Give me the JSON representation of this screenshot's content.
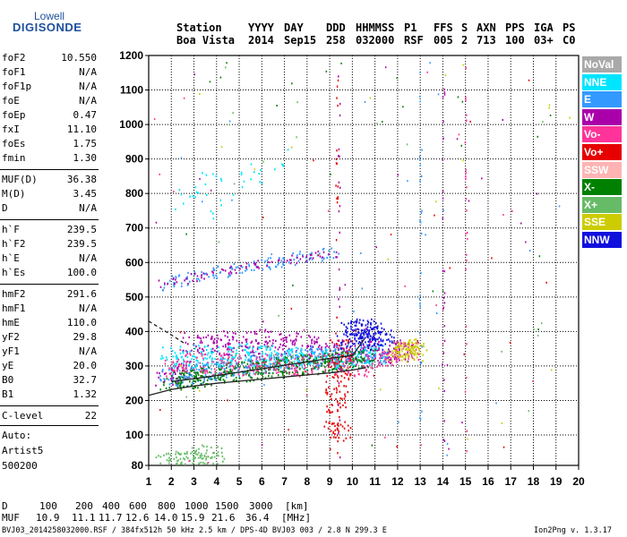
{
  "logo": {
    "line1": "Lowell",
    "line2": "DIGISONDE"
  },
  "header": {
    "row1": [
      "Station",
      "YYYY",
      "DAY",
      "DDD",
      "HHMMSS",
      "P1",
      "FFS",
      "S",
      "AXN",
      "PPS",
      "IGA",
      "PS"
    ],
    "row2": [
      "Boa Vista",
      "2014",
      "Sep15",
      "258",
      "032000",
      "RSF",
      "005",
      "2",
      "713",
      "100",
      "03+",
      "C0"
    ]
  },
  "params": [
    {
      "k": "foF2",
      "v": "10.550"
    },
    {
      "k": "foF1",
      "v": "N/A"
    },
    {
      "k": "foF1p",
      "v": "N/A"
    },
    {
      "k": "foE",
      "v": "N/A"
    },
    {
      "k": "foEp",
      "v": "0.47"
    },
    {
      "k": "fxI",
      "v": "11.10"
    },
    {
      "k": "foEs",
      "v": "1.75"
    },
    {
      "k": "fmin",
      "v": "1.30"
    },
    {
      "k": "MUF(D)",
      "v": "36.38"
    },
    {
      "k": "M(D)",
      "v": "3.45"
    },
    {
      "k": "D",
      "v": "N/A"
    },
    {
      "k": "h`F",
      "v": "239.5"
    },
    {
      "k": "h`F2",
      "v": "239.5"
    },
    {
      "k": "h`E",
      "v": "N/A"
    },
    {
      "k": "h`Es",
      "v": "100.0"
    },
    {
      "k": "hmF2",
      "v": "291.6"
    },
    {
      "k": "hmF1",
      "v": "N/A"
    },
    {
      "k": "hmE",
      "v": "110.0"
    },
    {
      "k": "yF2",
      "v": "29.8"
    },
    {
      "k": "yF1",
      "v": "N/A"
    },
    {
      "k": "yE",
      "v": "20.0"
    },
    {
      "k": "B0",
      "v": "32.7"
    },
    {
      "k": "B1",
      "v": "1.32"
    },
    {
      "k": "C-level",
      "v": "22"
    }
  ],
  "auto": {
    "line1": "Auto:",
    "line2": "Artist5",
    "line3": "500200"
  },
  "bottom": {
    "d_label": "D",
    "d_values": [
      "100",
      "200",
      "400",
      "600",
      "800",
      "1000",
      "1500",
      "3000",
      "[km]"
    ],
    "muf_label": "MUF",
    "muf_values": [
      "10.9",
      "11.1",
      "11.7",
      "12.6",
      "14.0",
      "15.9",
      "21.6",
      "36.4",
      "[MHz]"
    ]
  },
  "footer": {
    "left": "BVJ03_2014258032000.RSF / 384fx512h 50 kHz 2.5 km / DPS-4D BVJ03 003 / 2.8 N 299.3 E",
    "right": "Ion2Png v. 1.3.17"
  },
  "legend": [
    {
      "label": "NoVal",
      "color": "#a9a9a9"
    },
    {
      "label": "NNE",
      "color": "#00e5ff"
    },
    {
      "label": "E",
      "color": "#3399ff"
    },
    {
      "label": "W",
      "color": "#aa00aa"
    },
    {
      "label": "Vo-",
      "color": "#ff3399"
    },
    {
      "label": "Vo+",
      "color": "#e60000"
    },
    {
      "label": "SSW",
      "color": "#ffb3b3"
    },
    {
      "label": "X-",
      "color": "#008000"
    },
    {
      "label": "X+",
      "color": "#66bb66"
    },
    {
      "label": "SSE",
      "color": "#cccc00"
    },
    {
      "label": "NNW",
      "color": "#1010dd"
    }
  ],
  "chart_data": {
    "type": "scatter",
    "x_ticks": [
      1,
      2,
      3,
      4,
      5,
      6,
      7,
      8,
      9,
      10,
      11,
      12,
      13,
      14,
      15,
      16,
      17,
      18,
      19,
      20
    ],
    "y_ticks": [
      80,
      100,
      200,
      300,
      400,
      500,
      600,
      700,
      800,
      900,
      1000,
      1100,
      1200
    ],
    "xlim": [
      1,
      20
    ],
    "ylim": [
      80,
      1200
    ],
    "grid": true,
    "legend_position": "right",
    "series": [
      {
        "name": "W",
        "color": "#aa00aa",
        "x": [
          1.8,
          2.4,
          3.0,
          3.6,
          4.2,
          4.8,
          5.4,
          6.0,
          6.6,
          7.2,
          7.8,
          8.4,
          9.0,
          9.6,
          10.2,
          10.8,
          11.4,
          12.0,
          12.4
        ],
        "y": [
          270,
          290,
          370,
          365,
          360,
          375,
          355,
          380,
          360,
          370,
          350,
          365,
          340,
          350,
          330,
          345,
          335,
          340,
          350
        ]
      },
      {
        "name": "E",
        "color": "#3399ff",
        "x": [
          2.0,
          2.5,
          3.0,
          3.5,
          4.0,
          4.5,
          5.0,
          5.5,
          6.0,
          6.5,
          7.0,
          7.5,
          8.0,
          8.5,
          9.0,
          9.5,
          10.0,
          10.5,
          11.0
        ],
        "y": [
          265,
          272,
          278,
          284,
          290,
          295,
          300,
          305,
          310,
          315,
          318,
          322,
          325,
          328,
          330,
          332,
          335,
          338,
          340
        ]
      },
      {
        "name": "NNE",
        "color": "#00e5ff",
        "x": [
          2.0,
          2.6,
          3.2,
          3.8,
          4.4,
          5.0,
          5.6,
          6.2,
          6.8,
          7.4,
          8.0,
          8.6,
          9.2,
          9.8,
          10.4,
          11.0
        ],
        "y": [
          330,
          320,
          335,
          325,
          330,
          340,
          330,
          335,
          325,
          330,
          320,
          330,
          310,
          320,
          325,
          335
        ]
      },
      {
        "name": "X-",
        "color": "#008000",
        "x": [
          2.0,
          2.5,
          3.0,
          3.5,
          4.0,
          4.5,
          5.0,
          5.5,
          6.0,
          6.5,
          7.0,
          7.5,
          8.0,
          8.5,
          9.0,
          9.5,
          10.0,
          10.5
        ],
        "y": [
          258,
          262,
          266,
          270,
          275,
          280,
          285,
          288,
          292,
          296,
          300,
          303,
          306,
          309,
          312,
          315,
          318,
          322
        ]
      },
      {
        "name": "Vo-",
        "color": "#ff3399",
        "x": [
          2.2,
          3.0,
          3.8,
          4.6,
          5.4,
          6.2,
          7.0,
          7.8,
          8.6,
          9.4,
          10.2,
          11.0,
          11.8,
          12.4
        ],
        "y": [
          300,
          310,
          305,
          315,
          300,
          310,
          305,
          300,
          310,
          305,
          300,
          310,
          330,
          345
        ]
      },
      {
        "name": "NNW",
        "color": "#1010dd",
        "x": [
          9.8,
          10.0,
          10.2,
          10.4,
          10.6,
          10.8,
          11.0,
          11.2,
          11.4
        ],
        "y": [
          380,
          400,
          420,
          395,
          410,
          385,
          400,
          375,
          390
        ]
      },
      {
        "name": "SSE",
        "color": "#cccc00",
        "x": [
          12.0,
          12.2,
          12.4,
          12.6,
          12.8
        ],
        "y": [
          340,
          350,
          360,
          345,
          355
        ]
      },
      {
        "name": "Vo+",
        "color": "#e60000",
        "x": [
          9.2,
          9.3,
          9.3,
          9.4,
          9.4,
          9.5
        ],
        "y": [
          150,
          200,
          250,
          300,
          110,
          350
        ]
      },
      {
        "name": "X+",
        "color": "#66bb66",
        "x": [
          1.8,
          2.2,
          2.6,
          3.0,
          3.4,
          3.8
        ],
        "y": [
          82,
          83,
          84,
          85,
          86,
          88
        ]
      }
    ],
    "second_hop": {
      "x": [
        1.8,
        2.4,
        3.0,
        3.6,
        4.2,
        4.8,
        5.4,
        6.0,
        6.6,
        7.2,
        7.8,
        8.4,
        9.0
      ],
      "y": [
        540,
        550,
        560,
        568,
        575,
        582,
        590,
        598,
        605,
        612,
        618,
        625,
        630
      ]
    },
    "high_scatter": {
      "x": [
        2.4,
        2.8,
        3.2,
        3.6,
        4.0,
        4.4,
        5.0,
        5.6,
        6.2,
        6.8
      ],
      "y": [
        780,
        800,
        820,
        840,
        760,
        820,
        850,
        860,
        870,
        900
      ]
    },
    "profile_curve": {
      "x": [
        1.0,
        2.0,
        3.0,
        4.0,
        5.0,
        6.0,
        7.0,
        8.0,
        9.0,
        10.0,
        10.6
      ],
      "y": [
        215,
        232,
        242,
        250,
        256,
        262,
        268,
        274,
        280,
        288,
        295
      ]
    },
    "trace_curve": {
      "x": [
        2.0,
        3.0,
        4.0,
        5.0,
        6.0,
        7.0,
        8.0,
        9.0,
        10.0,
        10.55
      ],
      "y": [
        255,
        263,
        272,
        282,
        292,
        302,
        312,
        322,
        330,
        380
      ]
    },
    "dashed_curve": {
      "x": [
        1.0,
        1.5,
        2.0,
        2.6
      ],
      "y": [
        430,
        410,
        390,
        365
      ]
    }
  }
}
